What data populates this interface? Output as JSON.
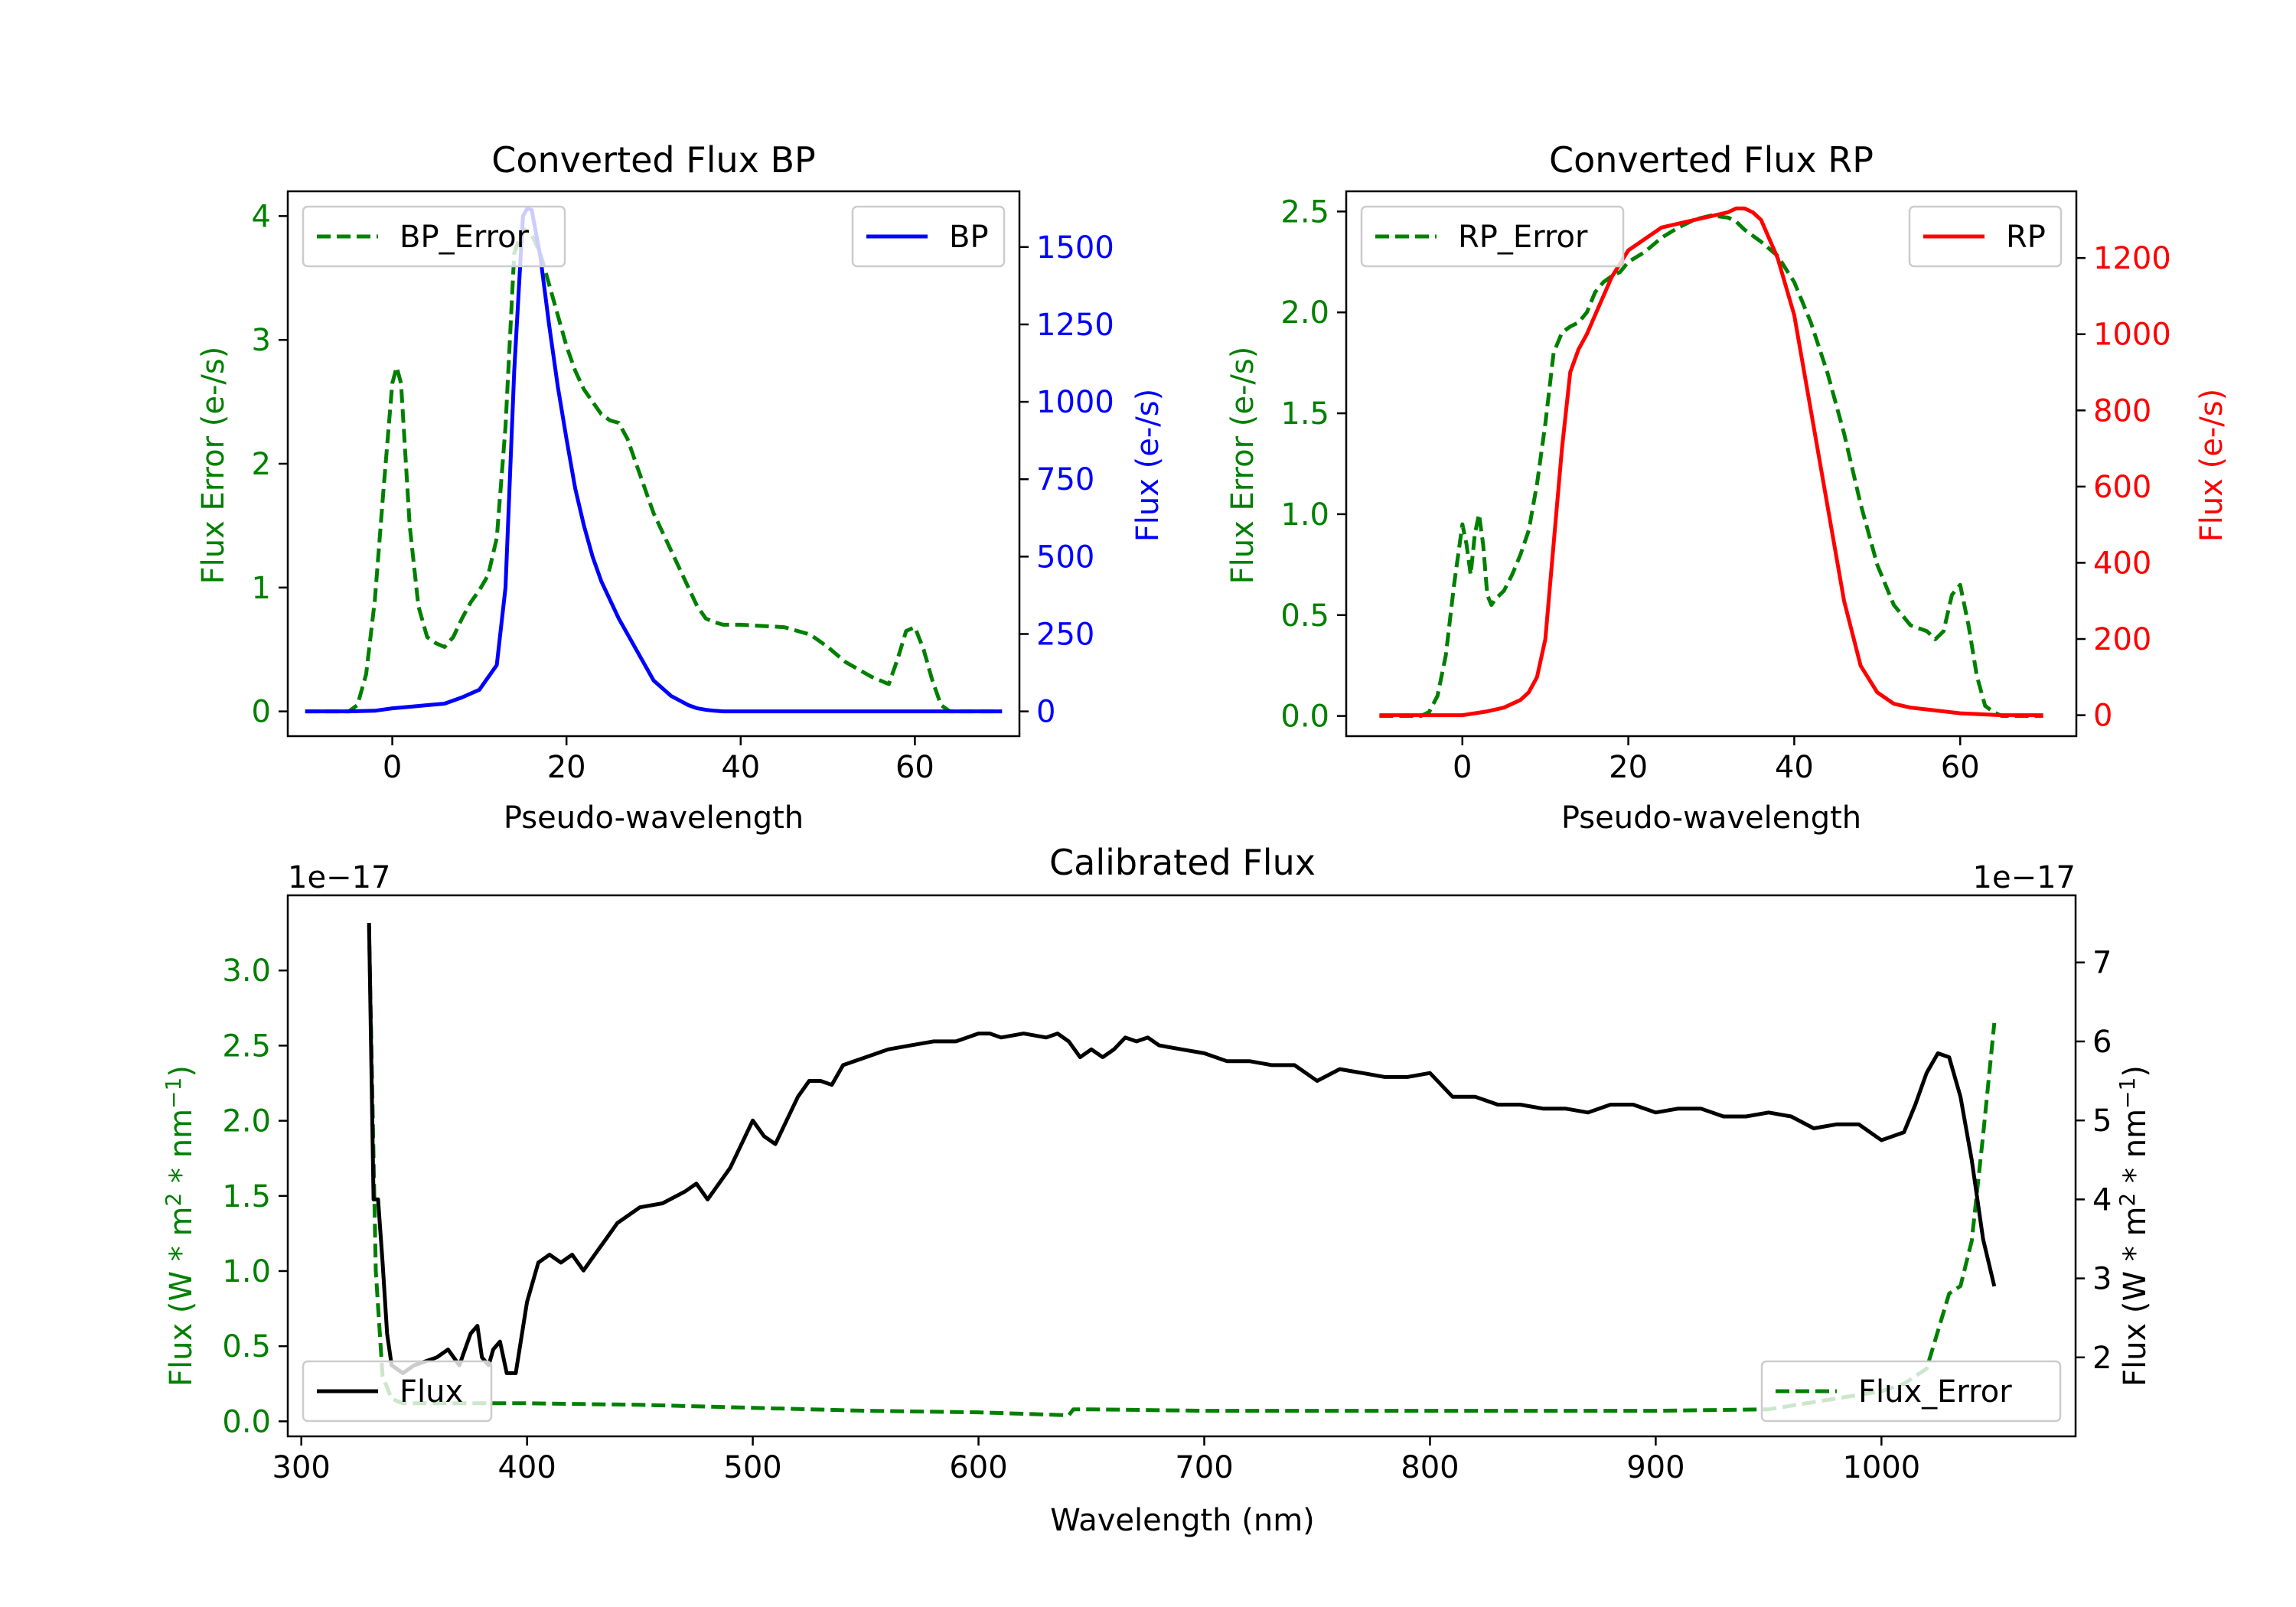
{
  "colors": {
    "error": "#008000",
    "bp": "#0000ff",
    "rp": "#ff0000",
    "flux": "#000000",
    "axis": "#000000",
    "legend_border": "#cccccc"
  },
  "chart_data": [
    {
      "id": "bp",
      "type": "line",
      "title": "Converted Flux BP",
      "xlabel": "Pseudo-wavelength",
      "ylabel_left": "Flux Error (e-/s)",
      "ylabel_right": "Flux (e-/s)",
      "xlim": [
        -12,
        72
      ],
      "ylim_left": [
        -0.2,
        4.2
      ],
      "ylim_right": [
        -80,
        1680
      ],
      "x_ticks": [
        0,
        20,
        40,
        60
      ],
      "x_tick_labels": [
        "0",
        "20",
        "40",
        "60"
      ],
      "y_left_ticks": [
        0,
        1,
        2,
        3,
        4
      ],
      "y_left_tick_labels": [
        "0",
        "1",
        "2",
        "3",
        "4"
      ],
      "y_right_ticks": [
        0,
        250,
        500,
        750,
        1000,
        1250,
        1500
      ],
      "y_right_tick_labels": [
        "0",
        "250",
        "500",
        "750",
        "1000",
        "1250",
        "1500"
      ],
      "legend_left": {
        "label": "BP_Error",
        "position": "upper-left"
      },
      "legend_right": {
        "label": "BP",
        "position": "upper-right"
      },
      "series": [
        {
          "name": "BP_Error",
          "axis": "left",
          "style": "dashed",
          "x": [
            -10,
            -5,
            -4,
            -3,
            -2,
            -1,
            0,
            0.5,
            1,
            2,
            3,
            4,
            5,
            6,
            7,
            8,
            9,
            10,
            11,
            12,
            13,
            14,
            15,
            16,
            17,
            18,
            19,
            20,
            21,
            22,
            23,
            24,
            25,
            26,
            27,
            28,
            29,
            30,
            31,
            32,
            33,
            34,
            35,
            36,
            37,
            38,
            40,
            45,
            48,
            50,
            52,
            55,
            57,
            58,
            59,
            60,
            61,
            62,
            63,
            64,
            65,
            70
          ],
          "y": [
            0,
            0,
            0.05,
            0.3,
            0.9,
            1.8,
            2.65,
            2.78,
            2.65,
            1.5,
            0.85,
            0.6,
            0.55,
            0.52,
            0.6,
            0.75,
            0.88,
            0.98,
            1.1,
            1.4,
            2.3,
            3.7,
            3.9,
            3.85,
            3.7,
            3.45,
            3.2,
            2.95,
            2.75,
            2.6,
            2.5,
            2.4,
            2.35,
            2.33,
            2.2,
            2.0,
            1.8,
            1.6,
            1.45,
            1.3,
            1.15,
            1.0,
            0.85,
            0.75,
            0.72,
            0.7,
            0.7,
            0.68,
            0.62,
            0.52,
            0.4,
            0.28,
            0.22,
            0.42,
            0.65,
            0.68,
            0.5,
            0.25,
            0.05,
            0,
            0,
            0
          ]
        },
        {
          "name": "BP",
          "axis": "right",
          "style": "solid",
          "x": [
            -10,
            -5,
            -2,
            0,
            2,
            4,
            6,
            8,
            10,
            12,
            13,
            14,
            15,
            15.5,
            16,
            17,
            18,
            19,
            20,
            21,
            22,
            23,
            24,
            26,
            28,
            30,
            32,
            34,
            35,
            36,
            37,
            38,
            40,
            45,
            50,
            55,
            60,
            65,
            70
          ],
          "y": [
            0,
            0,
            2,
            10,
            15,
            20,
            25,
            45,
            70,
            150,
            400,
            1100,
            1600,
            1625,
            1620,
            1470,
            1250,
            1050,
            880,
            720,
            600,
            500,
            420,
            300,
            200,
            100,
            50,
            20,
            10,
            5,
            2,
            0,
            0,
            0,
            0,
            0,
            0,
            0,
            0
          ]
        }
      ]
    },
    {
      "id": "rp",
      "type": "line",
      "title": "Converted Flux RP",
      "xlabel": "Pseudo-wavelength",
      "ylabel_left": "Flux Error (e-/s)",
      "ylabel_right": "Flux (e-/s)",
      "xlim": [
        -14,
        74
      ],
      "ylim_left": [
        -0.1,
        2.6
      ],
      "ylim_right": [
        -55,
        1375
      ],
      "x_ticks": [
        0,
        20,
        40,
        60
      ],
      "x_tick_labels": [
        "0",
        "20",
        "40",
        "60"
      ],
      "y_left_ticks": [
        0,
        0.5,
        1.0,
        1.5,
        2.0,
        2.5
      ],
      "y_left_tick_labels": [
        "0.0",
        "0.5",
        "1.0",
        "1.5",
        "2.0",
        "2.5"
      ],
      "y_right_ticks": [
        0,
        200,
        400,
        600,
        800,
        1000,
        1200
      ],
      "y_right_tick_labels": [
        "0",
        "200",
        "400",
        "600",
        "800",
        "1000",
        "1200"
      ],
      "legend_left": {
        "label": "RP_Error",
        "position": "upper-left"
      },
      "legend_right": {
        "label": "RP",
        "position": "upper-right"
      },
      "series": [
        {
          "name": "RP_Error",
          "axis": "left",
          "style": "dashed",
          "x": [
            -10,
            -5,
            -4,
            -3,
            -2,
            -1,
            0,
            0.5,
            1,
            1.5,
            2,
            2.5,
            3,
            3.5,
            4,
            5,
            6,
            7,
            8,
            9,
            10,
            11,
            12,
            13,
            14,
            15,
            16,
            17,
            18,
            19,
            20,
            22,
            24,
            26,
            28,
            30,
            32,
            33,
            34,
            36,
            38,
            40,
            42,
            44,
            46,
            48,
            50,
            52,
            54,
            56,
            57,
            58,
            59,
            60,
            61,
            62,
            63,
            64,
            65,
            70
          ],
          "y": [
            0,
            0,
            0.02,
            0.1,
            0.3,
            0.65,
            0.95,
            0.85,
            0.7,
            0.9,
            1.0,
            0.85,
            0.6,
            0.55,
            0.58,
            0.62,
            0.7,
            0.8,
            0.92,
            1.15,
            1.45,
            1.8,
            1.9,
            1.93,
            1.95,
            2.0,
            2.1,
            2.15,
            2.18,
            2.2,
            2.25,
            2.3,
            2.37,
            2.42,
            2.46,
            2.48,
            2.47,
            2.45,
            2.41,
            2.35,
            2.28,
            2.15,
            1.95,
            1.7,
            1.4,
            1.05,
            0.75,
            0.55,
            0.45,
            0.42,
            0.38,
            0.42,
            0.6,
            0.65,
            0.45,
            0.2,
            0.05,
            0.02,
            0,
            0
          ]
        },
        {
          "name": "RP",
          "axis": "right",
          "style": "solid",
          "x": [
            -10,
            -5,
            0,
            3,
            5,
            7,
            8,
            9,
            10,
            11,
            12,
            13,
            14,
            15,
            16,
            18,
            20,
            22,
            24,
            26,
            28,
            30,
            32,
            33,
            34,
            35,
            36,
            38,
            40,
            42,
            44,
            46,
            48,
            50,
            52,
            54,
            56,
            58,
            60,
            65,
            70
          ],
          "y": [
            0,
            0,
            0,
            10,
            20,
            40,
            60,
            100,
            200,
            450,
            700,
            900,
            960,
            1000,
            1050,
            1150,
            1220,
            1250,
            1280,
            1290,
            1300,
            1310,
            1320,
            1330,
            1330,
            1320,
            1300,
            1200,
            1050,
            800,
            550,
            300,
            130,
            60,
            30,
            20,
            15,
            10,
            5,
            0,
            0
          ]
        }
      ]
    },
    {
      "id": "calibrated",
      "type": "line",
      "title": "Calibrated Flux",
      "xlabel": "Wavelength (nm)",
      "ylabel_left": "Flux (W * m² * nm⁻¹)",
      "ylabel_right": "Flux (W * m² * nm⁻¹)",
      "offset_left": "1e−17",
      "offset_right": "1e−17",
      "xlim": [
        294,
        1086
      ],
      "ylim_left": [
        -0.1,
        3.5
      ],
      "ylim_right": [
        1.0,
        7.85
      ],
      "x_ticks": [
        300,
        400,
        500,
        600,
        700,
        800,
        900,
        1000
      ],
      "x_tick_labels": [
        "300",
        "400",
        "500",
        "600",
        "700",
        "800",
        "900",
        "1000"
      ],
      "y_left_ticks": [
        0,
        0.5,
        1.0,
        1.5,
        2.0,
        2.5,
        3.0
      ],
      "y_left_tick_labels": [
        "0.0",
        "0.5",
        "1.0",
        "1.5",
        "2.0",
        "2.5",
        "3.0"
      ],
      "y_right_ticks": [
        2,
        3,
        4,
        5,
        6,
        7
      ],
      "y_right_tick_labels": [
        "2",
        "3",
        "4",
        "5",
        "6",
        "7"
      ],
      "legend_left": {
        "label": "Flux",
        "position": "lower-left"
      },
      "legend_right": {
        "label": "Flux_Error",
        "position": "lower-right"
      },
      "series": [
        {
          "name": "Flux_Error",
          "axis": "left",
          "style": "dashed",
          "x": [
            330,
            333,
            336,
            340,
            345,
            350,
            360,
            400,
            450,
            500,
            550,
            600,
            640,
            642,
            650,
            700,
            800,
            900,
            950,
            1000,
            1010,
            1020,
            1025,
            1030,
            1035,
            1040,
            1045,
            1050
          ],
          "y": [
            3.3,
            1.0,
            0.3,
            0.15,
            0.12,
            0.12,
            0.12,
            0.12,
            0.11,
            0.09,
            0.07,
            0.06,
            0.04,
            0.08,
            0.08,
            0.07,
            0.07,
            0.07,
            0.08,
            0.2,
            0.25,
            0.35,
            0.6,
            0.85,
            0.9,
            1.2,
            1.9,
            2.65
          ]
        },
        {
          "name": "Flux",
          "axis": "right",
          "style": "solid",
          "x": [
            330,
            332,
            334,
            336,
            338,
            340,
            345,
            350,
            360,
            365,
            370,
            375,
            378,
            380,
            383,
            385,
            388,
            391,
            395,
            400,
            405,
            410,
            415,
            420,
            425,
            430,
            435,
            440,
            450,
            460,
            470,
            475,
            480,
            485,
            490,
            500,
            505,
            510,
            515,
            520,
            525,
            530,
            535,
            540,
            550,
            560,
            570,
            580,
            590,
            600,
            605,
            610,
            620,
            630,
            635,
            640,
            645,
            650,
            655,
            660,
            665,
            670,
            675,
            680,
            690,
            700,
            710,
            720,
            730,
            740,
            750,
            760,
            770,
            780,
            790,
            800,
            810,
            820,
            830,
            840,
            850,
            860,
            870,
            880,
            885,
            890,
            900,
            910,
            920,
            930,
            940,
            950,
            960,
            970,
            980,
            990,
            1000,
            1005,
            1010,
            1015,
            1020,
            1025,
            1030,
            1035,
            1040,
            1045,
            1050
          ],
          "y": [
            7.5,
            4.0,
            4.0,
            3.2,
            2.3,
            1.9,
            1.8,
            1.9,
            2.0,
            2.1,
            1.9,
            2.3,
            2.4,
            2.0,
            1.9,
            2.1,
            2.2,
            1.8,
            1.8,
            2.7,
            3.2,
            3.3,
            3.2,
            3.3,
            3.1,
            3.3,
            3.5,
            3.7,
            3.9,
            3.95,
            4.1,
            4.2,
            4.0,
            4.2,
            4.4,
            5.0,
            4.8,
            4.7,
            5.0,
            5.3,
            5.5,
            5.5,
            5.45,
            5.7,
            5.8,
            5.9,
            5.95,
            6.0,
            6.0,
            6.1,
            6.1,
            6.05,
            6.1,
            6.05,
            6.1,
            6.0,
            5.8,
            5.9,
            5.8,
            5.9,
            6.05,
            6.0,
            6.05,
            5.95,
            5.9,
            5.85,
            5.75,
            5.75,
            5.7,
            5.7,
            5.5,
            5.65,
            5.6,
            5.55,
            5.55,
            5.6,
            5.3,
            5.3,
            5.2,
            5.2,
            5.15,
            5.15,
            5.1,
            5.2,
            5.2,
            5.2,
            5.1,
            5.15,
            5.15,
            5.05,
            5.05,
            5.1,
            5.05,
            4.9,
            4.95,
            4.95,
            4.75,
            4.8,
            4.85,
            5.2,
            5.6,
            5.85,
            5.8,
            5.3,
            4.5,
            3.5,
            2.9
          ]
        }
      ]
    }
  ]
}
